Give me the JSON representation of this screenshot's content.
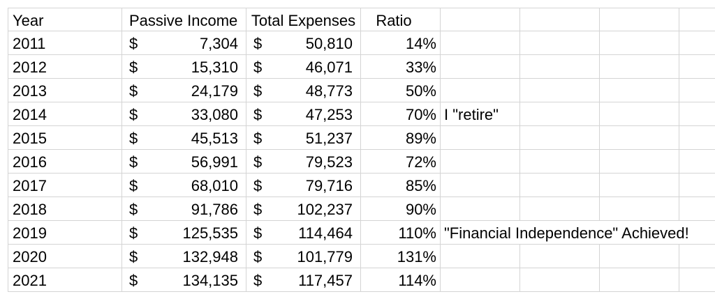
{
  "headers": {
    "year": "Year",
    "passive": "Passive Income",
    "expenses": "Total Expenses",
    "ratio": "Ratio"
  },
  "currency_symbol": "$",
  "rows": [
    {
      "year": "2011",
      "passive": "7,304",
      "expenses": "50,810",
      "ratio": "14%",
      "note": ""
    },
    {
      "year": "2012",
      "passive": "15,310",
      "expenses": "46,071",
      "ratio": "33%",
      "note": ""
    },
    {
      "year": "2013",
      "passive": "24,179",
      "expenses": "48,773",
      "ratio": "50%",
      "note": ""
    },
    {
      "year": "2014",
      "passive": "33,080",
      "expenses": "47,253",
      "ratio": "70%",
      "note": "I \"retire\""
    },
    {
      "year": "2015",
      "passive": "45,513",
      "expenses": "51,237",
      "ratio": "89%",
      "note": ""
    },
    {
      "year": "2016",
      "passive": "56,991",
      "expenses": "79,523",
      "ratio": "72%",
      "note": ""
    },
    {
      "year": "2017",
      "passive": "68,010",
      "expenses": "79,716",
      "ratio": "85%",
      "note": ""
    },
    {
      "year": "2018",
      "passive": "91,786",
      "expenses": "102,237",
      "ratio": "90%",
      "note": ""
    },
    {
      "year": "2019",
      "passive": "125,535",
      "expenses": "114,464",
      "ratio": "110%",
      "note": "\"Financial Independence\" Achieved!"
    },
    {
      "year": "2020",
      "passive": "132,948",
      "expenses": "101,779",
      "ratio": "131%",
      "note": ""
    },
    {
      "year": "2021",
      "passive": "134,135",
      "expenses": "117,457",
      "ratio": "114%",
      "note": ""
    }
  ]
}
